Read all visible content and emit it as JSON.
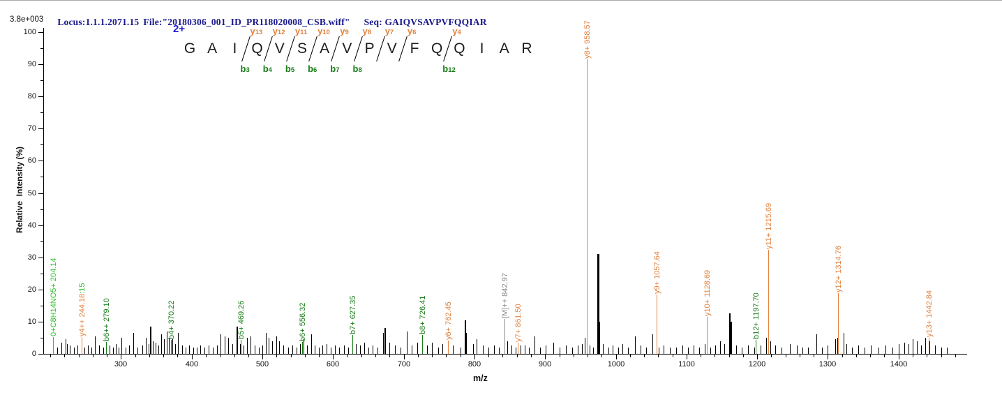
{
  "header": {
    "locus": "Locus:1.1.1.2071.15",
    "file": "File:\"20180306_001_ID_PR118020008_CSB.wiff\"",
    "seq": "Seq: GAIQVSAVPVFQQIAR"
  },
  "max_intensity": "3.8e+003",
  "colors": {
    "y_ion": "#E2823F",
    "b_ion": "#177C17",
    "frag_green": "#2FC12F",
    "precursor": "#8a8a8a",
    "peak_black": "#000000",
    "header_navy": "#18188C",
    "charge_blue": "#1F1FD0"
  },
  "sequence": {
    "charge": "2+",
    "residues": [
      "G",
      "A",
      "I",
      "Q",
      "V",
      "S",
      "A",
      "V",
      "P",
      "V",
      "F",
      "Q",
      "Q",
      "I",
      "A",
      "R"
    ],
    "cuts": [
      {
        "after": 3,
        "y_label": "y",
        "y_num": "13",
        "b_label": "b",
        "b_num": "3"
      },
      {
        "after": 4,
        "y_label": "y",
        "y_num": "12",
        "b_label": "b",
        "b_num": "4"
      },
      {
        "after": 5,
        "y_label": "y",
        "y_num": "11",
        "b_label": "b",
        "b_num": "5"
      },
      {
        "after": 6,
        "y_label": "y",
        "y_num": "10",
        "b_label": "b",
        "b_num": "6"
      },
      {
        "after": 7,
        "y_label": "y",
        "y_num": "9",
        "b_label": "b",
        "b_num": "7"
      },
      {
        "after": 8,
        "y_label": "y",
        "y_num": "8",
        "b_label": "b",
        "b_num": "8"
      },
      {
        "after": 9,
        "y_label": "y",
        "y_num": "7",
        "b_label": "",
        "b_num": ""
      },
      {
        "after": 10,
        "y_label": "y",
        "y_num": "6",
        "b_label": "",
        "b_num": ""
      },
      {
        "after": 12,
        "y_label": "y",
        "y_num": "4",
        "b_label": "b",
        "b_num": "12"
      }
    ]
  },
  "chart_data": {
    "type": "bar",
    "subtype": "ms2-stick-spectrum",
    "title": "",
    "xlabel": "m/z",
    "ylabel": "Relative  Intensity (%)",
    "x_range": [
      190,
      1496
    ],
    "y_range": [
      0,
      100
    ],
    "x_major_ticks": [
      300,
      400,
      500,
      600,
      700,
      800,
      900,
      1000,
      1100,
      1200,
      1300,
      1400
    ],
    "x_minor_step": 20,
    "y_major_ticks": [
      0,
      10,
      20,
      30,
      40,
      50,
      60,
      70,
      80,
      90,
      100
    ],
    "y_minor_step": 5,
    "grid": false,
    "legend": "none",
    "labeled_peaks": [
      {
        "mz": 204.14,
        "h": 5.2,
        "type": "frag-green",
        "label": "0+C8H14NO5+ 204.14"
      },
      {
        "mz": 244.18,
        "h": 5.2,
        "type": "y",
        "label": "y4++ 244.18",
        "overlay": ":15"
      },
      {
        "mz": 279.1,
        "h": 3.7,
        "type": "b",
        "label": "b6++ 279.10"
      },
      {
        "mz": 370.22,
        "h": 4.3,
        "type": "b",
        "label": "b4+ 370.22"
      },
      {
        "mz": 469.26,
        "h": 4.3,
        "type": "b",
        "label": "b5+ 469.26"
      },
      {
        "mz": 556.32,
        "h": 3.7,
        "type": "b",
        "label": "b6+ 556.32"
      },
      {
        "mz": 627.35,
        "h": 5.9,
        "type": "b",
        "label": "b7+ 627.35"
      },
      {
        "mz": 726.41,
        "h": 5.9,
        "type": "b",
        "label": "b8+ 726.41"
      },
      {
        "mz": 762.45,
        "h": 4.1,
        "type": "y",
        "label": "y6+ 762.45"
      },
      {
        "mz": 842.97,
        "h": 10.8,
        "type": "precursor",
        "label": "[M]++ 842.97"
      },
      {
        "mz": 861.5,
        "h": 3.5,
        "type": "y",
        "label": "y7+ 861.50"
      },
      {
        "mz": 958.57,
        "h": 91.5,
        "type": "y",
        "label": "y8+ 958.57"
      },
      {
        "mz": 1057.64,
        "h": 18.4,
        "type": "y",
        "label": "y9+ 1057.64"
      },
      {
        "mz": 1128.69,
        "h": 11.5,
        "type": "y",
        "label": "y10+ 1128.69"
      },
      {
        "mz": 1197.7,
        "h": 4.3,
        "type": "b",
        "label": "b12+ 1197.70"
      },
      {
        "mz": 1215.69,
        "h": 32.3,
        "type": "y",
        "label": "y11+ 1215.69"
      },
      {
        "mz": 1314.76,
        "h": 18.8,
        "type": "y",
        "label": "y12+ 1314.76"
      },
      {
        "mz": 1442.84,
        "h": 5.0,
        "type": "y",
        "label": "y13+ 1442.84"
      }
    ],
    "unlabeled_peaks": [
      [
        210,
        2
      ],
      [
        216,
        3.5
      ],
      [
        222,
        4.5
      ],
      [
        224,
        3
      ],
      [
        228,
        2.5
      ],
      [
        233,
        2
      ],
      [
        238,
        2.5
      ],
      [
        248,
        2
      ],
      [
        253,
        2.5
      ],
      [
        258,
        2
      ],
      [
        263,
        5.5
      ],
      [
        269,
        2.5
      ],
      [
        275,
        2
      ],
      [
        284,
        2.5
      ],
      [
        289,
        2
      ],
      [
        293,
        3
      ],
      [
        297,
        2
      ],
      [
        301,
        5
      ],
      [
        306,
        2
      ],
      [
        311,
        2.5
      ],
      [
        317,
        6.5
      ],
      [
        323,
        2
      ],
      [
        330,
        2.5
      ],
      [
        335,
        5
      ],
      [
        339,
        3
      ],
      [
        341,
        8.5
      ],
      [
        345,
        4
      ],
      [
        349,
        3.5
      ],
      [
        353,
        2.5
      ],
      [
        357,
        6
      ],
      [
        361,
        4.5
      ],
      [
        365,
        7
      ],
      [
        368,
        5
      ],
      [
        373,
        4.5
      ],
      [
        377,
        3
      ],
      [
        381,
        6.5
      ],
      [
        386,
        2.5
      ],
      [
        391,
        2
      ],
      [
        396,
        2.5
      ],
      [
        402,
        2
      ],
      [
        407,
        2
      ],
      [
        412,
        2.5
      ],
      [
        418,
        2
      ],
      [
        424,
        2.5
      ],
      [
        430,
        2
      ],
      [
        436,
        2.5
      ],
      [
        441,
        6
      ],
      [
        447,
        5.5
      ],
      [
        452,
        5
      ],
      [
        458,
        3
      ],
      [
        463,
        8.5
      ],
      [
        468,
        3
      ],
      [
        473,
        2.5
      ],
      [
        478,
        5
      ],
      [
        483,
        5.5
      ],
      [
        489,
        2.5
      ],
      [
        495,
        2
      ],
      [
        500,
        2.5
      ],
      [
        505,
        6.5
      ],
      [
        509,
        5
      ],
      [
        514,
        4
      ],
      [
        520,
        5.5
      ],
      [
        524,
        4
      ],
      [
        530,
        2.5
      ],
      [
        536,
        2
      ],
      [
        542,
        2.5
      ],
      [
        548,
        2
      ],
      [
        553,
        3
      ],
      [
        558,
        4.5
      ],
      [
        563,
        2.5
      ],
      [
        569,
        6
      ],
      [
        574,
        2.5
      ],
      [
        580,
        2
      ],
      [
        585,
        2.5
      ],
      [
        591,
        3
      ],
      [
        597,
        2
      ],
      [
        603,
        2.5
      ],
      [
        609,
        2
      ],
      [
        615,
        2.5
      ],
      [
        621,
        2
      ],
      [
        632,
        3
      ],
      [
        638,
        2.5
      ],
      [
        644,
        3.5
      ],
      [
        650,
        2
      ],
      [
        656,
        2.5
      ],
      [
        663,
        2
      ],
      [
        671,
        6.5
      ],
      [
        673,
        8
      ],
      [
        680,
        3.5
      ],
      [
        688,
        2.5
      ],
      [
        695,
        2
      ],
      [
        704,
        7
      ],
      [
        711,
        2.5
      ],
      [
        719,
        3.5
      ],
      [
        733,
        2.5
      ],
      [
        740,
        3.5
      ],
      [
        749,
        2
      ],
      [
        755,
        3
      ],
      [
        769,
        2.5
      ],
      [
        780,
        2
      ],
      [
        786,
        10.5
      ],
      [
        788,
        6.5
      ],
      [
        798,
        3
      ],
      [
        803,
        4.5
      ],
      [
        812,
        2.5
      ],
      [
        820,
        2
      ],
      [
        828,
        2.5
      ],
      [
        835,
        2
      ],
      [
        846,
        4
      ],
      [
        852,
        2.5
      ],
      [
        858,
        2
      ],
      [
        865,
        2.5
      ],
      [
        871,
        2.5
      ],
      [
        877,
        2
      ],
      [
        885,
        5.5
      ],
      [
        893,
        2
      ],
      [
        901,
        2.5
      ],
      [
        912,
        3.5
      ],
      [
        920,
        2
      ],
      [
        929,
        2.5
      ],
      [
        938,
        2
      ],
      [
        946,
        2.5
      ],
      [
        952,
        3
      ],
      [
        956,
        5
      ],
      [
        963,
        2.5
      ],
      [
        968,
        2
      ],
      [
        974,
        31
      ],
      [
        976,
        10
      ],
      [
        982,
        3
      ],
      [
        990,
        2
      ],
      [
        996,
        2.5
      ],
      [
        1003,
        2
      ],
      [
        1009,
        3
      ],
      [
        1017,
        2
      ],
      [
        1027,
        5.5
      ],
      [
        1035,
        2.5
      ],
      [
        1043,
        2
      ],
      [
        1052,
        6
      ],
      [
        1061,
        2
      ],
      [
        1068,
        2.5
      ],
      [
        1076,
        2
      ],
      [
        1085,
        2
      ],
      [
        1094,
        2.5
      ],
      [
        1102,
        2
      ],
      [
        1110,
        2.5
      ],
      [
        1118,
        2
      ],
      [
        1126,
        3
      ],
      [
        1134,
        2
      ],
      [
        1141,
        2.5
      ],
      [
        1148,
        4
      ],
      [
        1153,
        3
      ],
      [
        1160,
        12.5
      ],
      [
        1162,
        10
      ],
      [
        1170,
        2.5
      ],
      [
        1178,
        2
      ],
      [
        1187,
        2.5
      ],
      [
        1196,
        2
      ],
      [
        1205,
        2.5
      ],
      [
        1213,
        5
      ],
      [
        1219,
        4
      ],
      [
        1226,
        2.5
      ],
      [
        1234,
        2
      ],
      [
        1246,
        3
      ],
      [
        1256,
        2.5
      ],
      [
        1264,
        2
      ],
      [
        1272,
        2
      ],
      [
        1284,
        6
      ],
      [
        1292,
        2
      ],
      [
        1300,
        2.5
      ],
      [
        1310,
        4.5
      ],
      [
        1313,
        5
      ],
      [
        1322,
        6.5
      ],
      [
        1326,
        3
      ],
      [
        1334,
        2
      ],
      [
        1343,
        2.5
      ],
      [
        1352,
        2
      ],
      [
        1361,
        2.5
      ],
      [
        1372,
        2
      ],
      [
        1381,
        2.5
      ],
      [
        1391,
        2
      ],
      [
        1400,
        3
      ],
      [
        1408,
        3.5
      ],
      [
        1414,
        3
      ],
      [
        1420,
        4.5
      ],
      [
        1426,
        4
      ],
      [
        1432,
        2.5
      ],
      [
        1438,
        5
      ],
      [
        1444,
        4
      ],
      [
        1452,
        2.5
      ],
      [
        1460,
        2
      ],
      [
        1468,
        2
      ]
    ]
  }
}
